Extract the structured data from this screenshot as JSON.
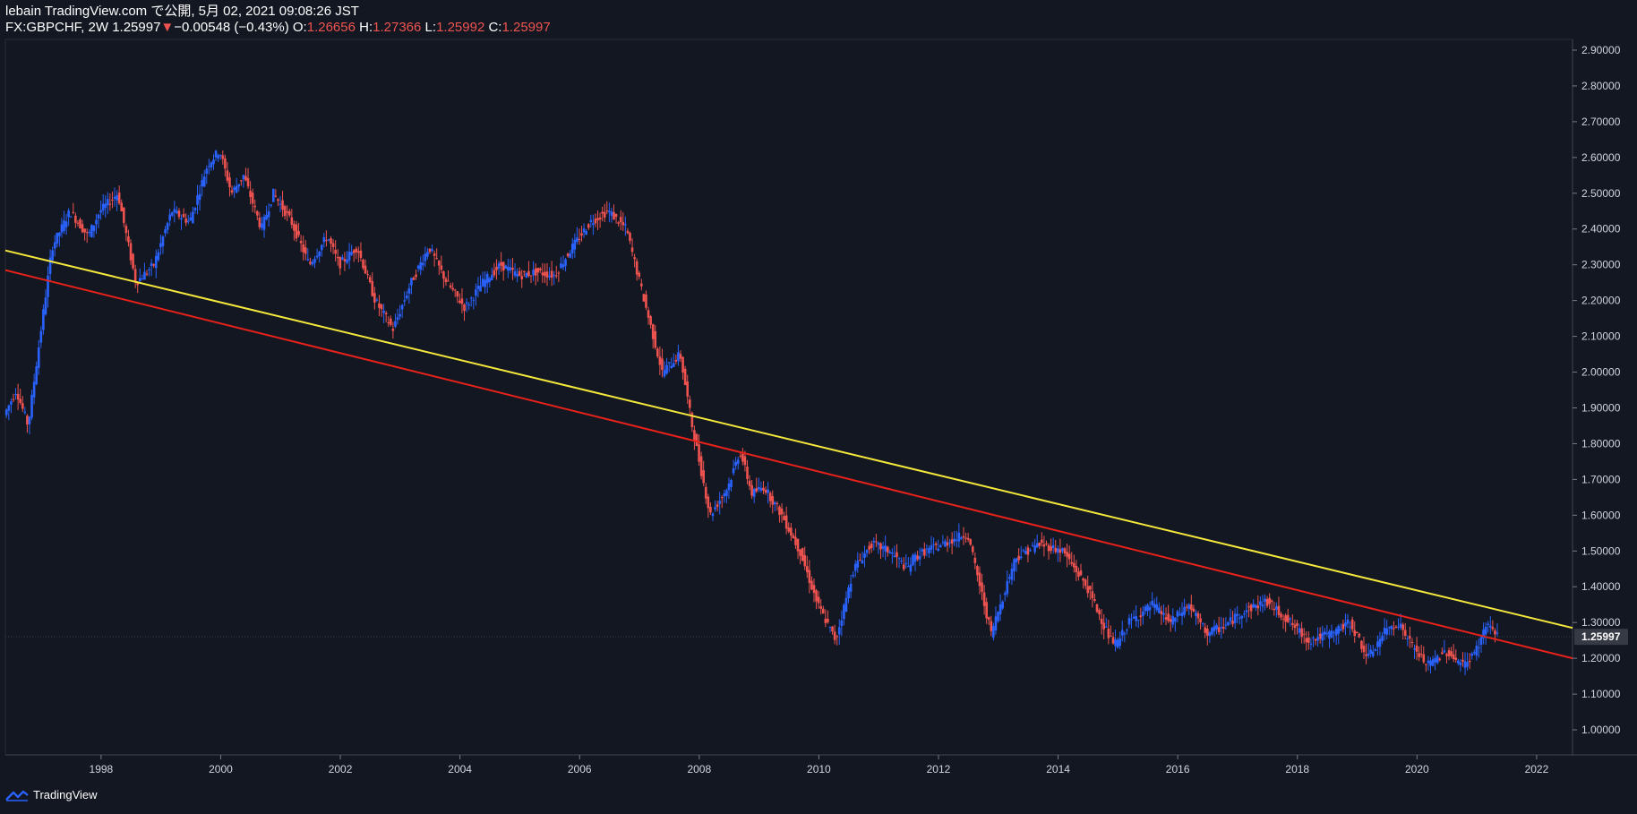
{
  "header": {
    "publish_line": "lebain TradingView.com で公開, 5月 02, 2021 09:08:26 JST",
    "symbol": "FX:GBPCHF, 2W",
    "last": "1.25997",
    "change_arrow": "▼",
    "change": "−0.00548 (−0.43%)",
    "o_label": "O:",
    "o_value": "1.26656",
    "h_label": "H:",
    "h_value": "1.27366",
    "l_label": "L:",
    "l_value": "1.25992",
    "c_label": "C:",
    "c_value": "1.25997"
  },
  "footer": {
    "brand": "TradingView",
    "logo_icon": "tradingview-logo-icon"
  },
  "colors": {
    "background": "#131722",
    "up": "#2962ff",
    "down": "#ef5350",
    "yellow_line": "#f5e83c",
    "red_line": "#e8221a",
    "axis_text": "#d1d4dc"
  },
  "chart_data": {
    "type": "candlestick",
    "title": "FX:GBPCHF, 2W",
    "xlim": [
      1996.4,
      2022.6
    ],
    "ylim": [
      0.93,
      2.93
    ],
    "x_ticks": [
      "1998",
      "2000",
      "2002",
      "2004",
      "2006",
      "2008",
      "2010",
      "2012",
      "2014",
      "2016",
      "2018",
      "2020",
      "2022"
    ],
    "x_tick_values": [
      1998,
      2000,
      2002,
      2004,
      2006,
      2008,
      2010,
      2012,
      2014,
      2016,
      2018,
      2020,
      2022
    ],
    "y_ticks": [
      "1.00000",
      "1.10000",
      "1.20000",
      "1.30000",
      "1.40000",
      "1.50000",
      "1.60000",
      "1.70000",
      "1.80000",
      "1.90000",
      "2.00000",
      "2.10000",
      "2.20000",
      "2.30000",
      "2.40000",
      "2.50000",
      "2.60000",
      "2.70000",
      "2.80000",
      "2.90000"
    ],
    "y_tick_values": [
      1.0,
      1.1,
      1.2,
      1.3,
      1.4,
      1.5,
      1.6,
      1.7,
      1.8,
      1.9,
      2.0,
      2.1,
      2.2,
      2.3,
      2.4,
      2.5,
      2.6,
      2.7,
      2.8,
      2.9
    ],
    "last_price_label": "1.25997",
    "last_price": 1.25997,
    "price_path": {
      "x": [
        1996.4,
        1996.6,
        1996.8,
        1997.0,
        1997.2,
        1997.5,
        1997.8,
        1998.0,
        1998.3,
        1998.6,
        1998.9,
        1999.2,
        1999.5,
        1999.8,
        2000.0,
        2000.2,
        2000.4,
        2000.7,
        2000.9,
        2001.2,
        2001.5,
        2001.8,
        2002.0,
        2002.3,
        2002.6,
        2002.9,
        2003.2,
        2003.5,
        2003.8,
        2004.1,
        2004.4,
        2004.7,
        2005.0,
        2005.3,
        2005.6,
        2005.9,
        2006.2,
        2006.5,
        2006.8,
        2007.1,
        2007.4,
        2007.7,
        2007.9,
        2008.2,
        2008.5,
        2008.7,
        2008.9,
        2009.1,
        2009.4,
        2009.7,
        2010.0,
        2010.3,
        2010.6,
        2010.9,
        2011.2,
        2011.5,
        2011.6,
        2011.8,
        2012.1,
        2012.5,
        2012.9,
        2013.3,
        2013.7,
        2014.1,
        2014.5,
        2014.9,
        2015.0,
        2015.2,
        2015.6,
        2015.9,
        2016.2,
        2016.5,
        2016.8,
        2017.1,
        2017.5,
        2017.9,
        2018.2,
        2018.6,
        2018.9,
        2019.2,
        2019.5,
        2019.7,
        2020.0,
        2020.2,
        2020.5,
        2020.8,
        2021.0,
        2021.2,
        2021.35
      ],
      "y": [
        1.88,
        1.95,
        1.85,
        2.1,
        2.35,
        2.45,
        2.38,
        2.45,
        2.5,
        2.25,
        2.3,
        2.45,
        2.42,
        2.58,
        2.62,
        2.5,
        2.55,
        2.4,
        2.5,
        2.42,
        2.3,
        2.38,
        2.3,
        2.35,
        2.2,
        2.12,
        2.25,
        2.35,
        2.25,
        2.18,
        2.25,
        2.3,
        2.27,
        2.28,
        2.27,
        2.35,
        2.42,
        2.45,
        2.4,
        2.2,
        2.0,
        2.05,
        1.85,
        1.6,
        1.68,
        1.78,
        1.66,
        1.68,
        1.6,
        1.5,
        1.35,
        1.25,
        1.45,
        1.52,
        1.5,
        1.45,
        1.48,
        1.5,
        1.52,
        1.55,
        1.27,
        1.48,
        1.52,
        1.5,
        1.4,
        1.25,
        1.24,
        1.3,
        1.35,
        1.3,
        1.35,
        1.27,
        1.29,
        1.33,
        1.36,
        1.3,
        1.25,
        1.27,
        1.3,
        1.2,
        1.28,
        1.3,
        1.22,
        1.18,
        1.22,
        1.18,
        1.22,
        1.3,
        1.26
      ]
    },
    "trendlines": [
      {
        "color": "yellow",
        "x": [
          1996.4,
          2022.6
        ],
        "y": [
          2.34,
          1.285
        ]
      },
      {
        "color": "red",
        "x": [
          1996.4,
          2022.6
        ],
        "y": [
          2.285,
          1.2
        ]
      }
    ]
  }
}
